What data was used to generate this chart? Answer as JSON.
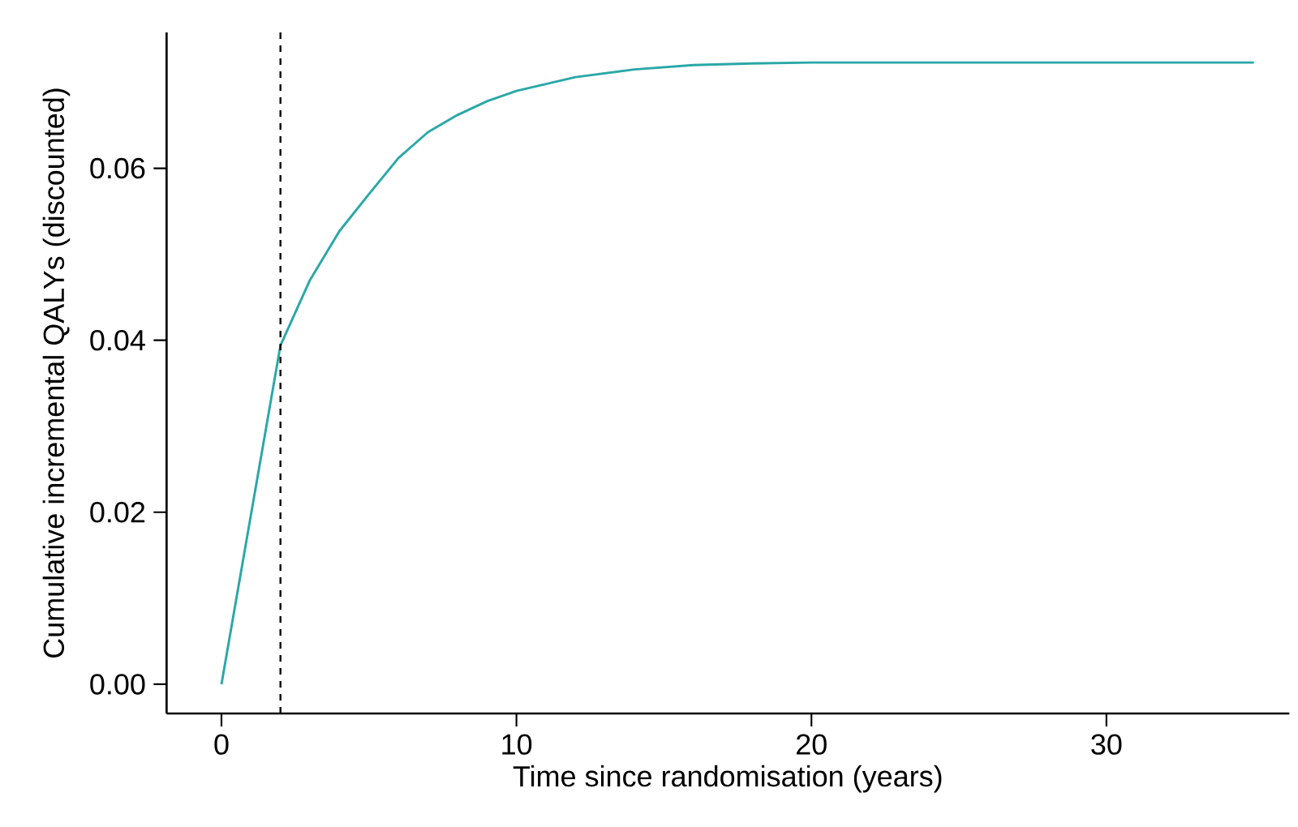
{
  "chart_data": {
    "type": "line",
    "xlabel": "Time since randomisation (years)",
    "ylabel": "Cumulative incremental QALYs (discounted)",
    "series": [
      {
        "color": "#2aa7a7",
        "x": [
          0,
          2,
          3,
          4,
          5,
          6,
          7,
          8,
          9,
          10,
          12,
          14,
          16,
          18,
          20,
          25,
          30,
          35
        ],
        "values": [
          0,
          0.0394,
          0.047,
          0.0527,
          0.057,
          0.0612,
          0.0642,
          0.0662,
          0.0678,
          0.069,
          0.0706,
          0.0715,
          0.072,
          0.0722,
          0.0723,
          0.0723,
          0.0723,
          0.0723
        ]
      }
    ],
    "xlim": [
      -1.86,
      36.2
    ],
    "ylim": [
      -0.0034,
      0.0758
    ],
    "xticks": [
      0,
      10,
      20,
      30
    ],
    "yticks": [
      {
        "value": 0,
        "label": "0.00"
      },
      {
        "value": 0.02,
        "label": "0.02"
      },
      {
        "value": 0.04,
        "label": "0.04"
      },
      {
        "value": 0.06,
        "label": "0.06"
      }
    ],
    "ref_lines": [
      {
        "axis": "x",
        "value": 2,
        "color": "#000000",
        "line_style": "dashed"
      }
    ],
    "marker": "none",
    "line_style": "solid"
  }
}
